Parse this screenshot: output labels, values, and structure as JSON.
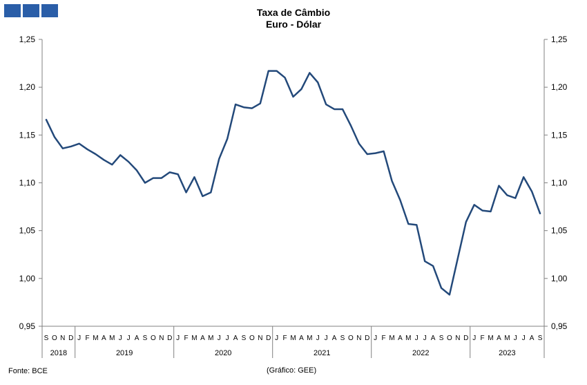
{
  "header": {
    "logo_icon": "institution-logo-blocks",
    "logo_color": "#2a5ea8"
  },
  "chart_data": {
    "type": "line",
    "title": "Taxa de Câmbio",
    "subtitle": "Euro - Dólar",
    "xlabel": "",
    "ylabel": "",
    "ylim": [
      0.95,
      1.25
    ],
    "yticks": [
      "0,95",
      "1,00",
      "1,05",
      "1,10",
      "1,15",
      "1,20",
      "1,25"
    ],
    "y_axis_both_sides": true,
    "grid": false,
    "legend": "none",
    "line_color": "#23497a",
    "month_labels": [
      "S",
      "O",
      "N",
      "D",
      "J",
      "F",
      "M",
      "A",
      "M",
      "J",
      "J",
      "A",
      "S",
      "O",
      "N",
      "D",
      "J",
      "F",
      "M",
      "A",
      "M",
      "J",
      "J",
      "A",
      "S",
      "O",
      "N",
      "D",
      "J",
      "F",
      "M",
      "A",
      "M",
      "J",
      "J",
      "A",
      "S",
      "O",
      "N",
      "D",
      "J",
      "F",
      "M",
      "A",
      "M",
      "J",
      "J",
      "A",
      "S",
      "O",
      "N",
      "D",
      "J",
      "F",
      "M",
      "A",
      "M",
      "J",
      "J",
      "A",
      "S"
    ],
    "year_groups": [
      {
        "label": "2018",
        "months": 4
      },
      {
        "label": "2019",
        "months": 12
      },
      {
        "label": "2020",
        "months": 12
      },
      {
        "label": "2021",
        "months": 12
      },
      {
        "label": "2022",
        "months": 12
      },
      {
        "label": "2023",
        "months": 9
      }
    ],
    "series": [
      {
        "values": [
          1.166,
          1.148,
          1.136,
          1.138,
          1.141,
          1.135,
          1.13,
          1.124,
          1.119,
          1.129,
          1.122,
          1.113,
          1.1,
          1.105,
          1.105,
          1.111,
          1.109,
          1.09,
          1.106,
          1.086,
          1.09,
          1.125,
          1.146,
          1.182,
          1.179,
          1.178,
          1.183,
          1.217,
          1.217,
          1.21,
          1.19,
          1.198,
          1.215,
          1.205,
          1.182,
          1.177,
          1.177,
          1.16,
          1.141,
          1.13,
          1.131,
          1.133,
          1.102,
          1.082,
          1.057,
          1.056,
          1.018,
          1.013,
          0.99,
          0.983,
          1.021,
          1.059,
          1.077,
          1.071,
          1.07,
          1.097,
          1.087,
          1.084,
          1.106,
          1.091,
          1.068
        ]
      }
    ]
  },
  "footer": {
    "source": "Fonte: BCE",
    "credit": "(Gráfico: GEE)"
  }
}
